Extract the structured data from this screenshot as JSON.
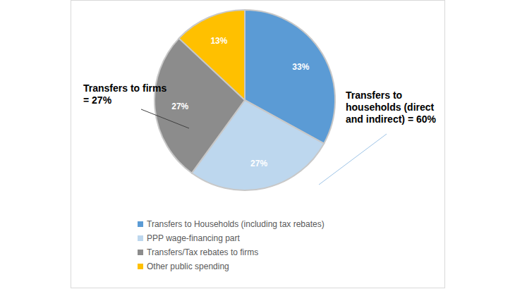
{
  "chart_data": {
    "type": "pie",
    "categories": [
      "Transfers to Households (including tax rebates)",
      "PPP wage-financing part",
      "Transfers/Tax rebates to firms",
      "Other public spending"
    ],
    "values": [
      33,
      27,
      27,
      13
    ],
    "value_labels": [
      "33%",
      "27%",
      "27%",
      "13%"
    ],
    "colors": [
      "#5b9bd5",
      "#bdd7ee",
      "#8c8c8c",
      "#ffc000"
    ],
    "data_labels": true,
    "legend": "bottom",
    "annotations": [
      {
        "text": "Transfers to firms = 27%"
      },
      {
        "text": "Transfers to households (direct and indirect) = 60%"
      }
    ]
  }
}
